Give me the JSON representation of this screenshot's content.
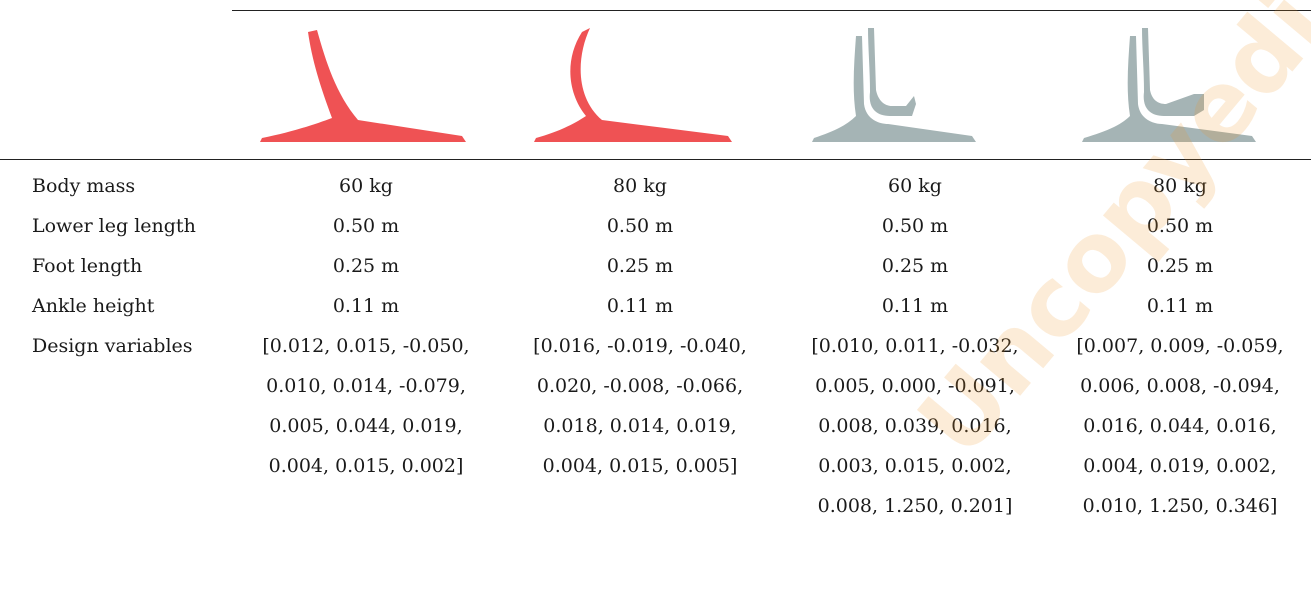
{
  "colors": {
    "red_design": "#ef5254",
    "grey_design": "#a5b4b5",
    "rule": "#222222"
  },
  "table": {
    "rows": [
      {
        "label": "Body mass",
        "values": [
          "60 kg",
          "80 kg",
          "60 kg",
          "80 kg"
        ]
      },
      {
        "label": "Lower leg length",
        "values": [
          "0.50 m",
          "0.50 m",
          "0.50 m",
          "0.50 m"
        ]
      },
      {
        "label": "Foot length",
        "values": [
          "0.25 m",
          "0.25 m",
          "0.25 m",
          "0.25 m"
        ]
      },
      {
        "label": "Ankle height",
        "values": [
          "0.11 m",
          "0.11 m",
          "0.11 m",
          "0.11 m"
        ]
      },
      {
        "label": "Design variables",
        "values": [
          [
            "[0.012, 0.015, -0.050,",
            "0.010, 0.014, -0.079,",
            "0.005, 0.044, 0.019,",
            "0.004, 0.015, 0.002]",
            ""
          ],
          [
            "[0.016, -0.019, -0.040,",
            "0.020, -0.008, -0.066,",
            "0.018, 0.014, 0.019,",
            "0.004, 0.015, 0.005]",
            ""
          ],
          [
            "[0.010, 0.011, -0.032,",
            "0.005, 0.000, -0.091,",
            "0.008, 0.039, 0.016,",
            "0.003, 0.015, 0.002,",
            "0.008, 1.250, 0.201]"
          ],
          [
            "[0.007, 0.009, -0.059,",
            "0.006, 0.008, -0.094,",
            "0.016, 0.044, 0.016,",
            "0.004, 0.019, 0.002,",
            "0.010, 1.250, 0.346]"
          ]
        ]
      }
    ]
  },
  "watermark": "Uncopyedited"
}
